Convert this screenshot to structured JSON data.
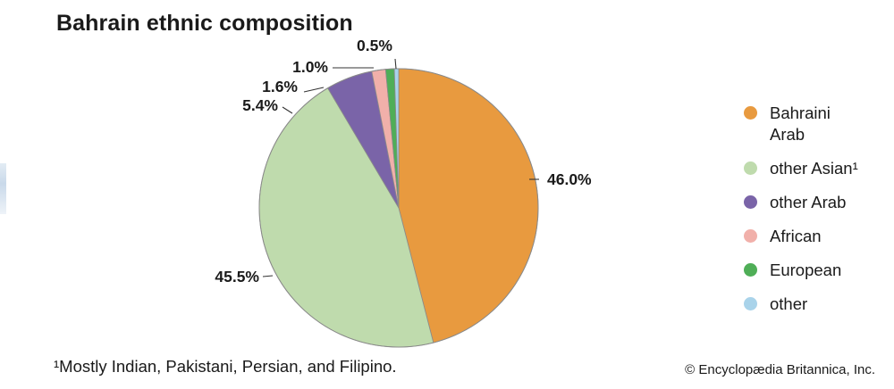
{
  "title": "Bahrain ethnic composition",
  "footnote": "¹Mostly Indian, Pakistani, Persian, and Filipino.",
  "copyright": "© Encyclopædia Britannica, Inc.",
  "chart_data": {
    "type": "pie",
    "title": "Bahrain ethnic composition",
    "unit": "%",
    "slices": [
      {
        "label": "Bahraini Arab",
        "legend_lines": [
          "Bahraini",
          "Arab"
        ],
        "value": 46.0,
        "value_label": "46.0%",
        "color": "#e89a3f"
      },
      {
        "label": "other Asian¹",
        "legend_lines": [
          "other Asian¹"
        ],
        "value": 45.5,
        "value_label": "45.5%",
        "color": "#bfdbad"
      },
      {
        "label": "other Arab",
        "legend_lines": [
          "other Arab"
        ],
        "value": 5.4,
        "value_label": "5.4%",
        "color": "#7a64a8"
      },
      {
        "label": "African",
        "legend_lines": [
          "African"
        ],
        "value": 1.6,
        "value_label": "1.6%",
        "color": "#f1b0aa"
      },
      {
        "label": "European",
        "legend_lines": [
          "European"
        ],
        "value": 1.0,
        "value_label": "1.0%",
        "color": "#4fae57"
      },
      {
        "label": "other",
        "legend_lines": [
          "other"
        ],
        "value": 0.5,
        "value_label": "0.5%",
        "color": "#a9d3ea"
      }
    ],
    "legend_placement": "right"
  }
}
